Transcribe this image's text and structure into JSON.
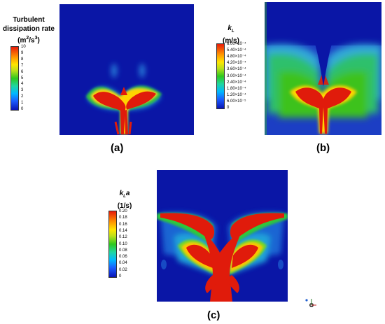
{
  "panel_a": {
    "title_line1": "Turbulent",
    "title_line2": "dissipation rate",
    "title_unit_base": "(m",
    "title_unit_exp1": "2",
    "title_unit_mid": "/s",
    "title_unit_exp2": "3",
    "title_unit_end": ")",
    "ticks": [
      "10",
      "9",
      "8",
      "7",
      "6",
      "5",
      "4",
      "3",
      "2",
      "1",
      "0"
    ],
    "caption": "(a)"
  },
  "panel_b": {
    "title_line1": "k",
    "title_sub": "L",
    "title_unit": "(m/s)",
    "ticks": [
      "6.00×10⁻⁴",
      "5.40×10⁻⁴",
      "4.80×10⁻⁴",
      "4.20×10⁻⁴",
      "3.60×10⁻⁴",
      "3.00×10⁻⁴",
      "2.40×10⁻⁴",
      "1.80×10⁻⁴",
      "1.20×10⁻⁴",
      "6.00×10⁻⁵",
      "0"
    ],
    "caption": "(b)"
  },
  "panel_c": {
    "title_line1": "k",
    "title_sub": "L",
    "title_suffix": "a",
    "title_unit": "(1/s)",
    "ticks": [
      "0.20",
      "0.18",
      "0.16",
      "0.14",
      "0.12",
      "0.10",
      "0.08",
      "0.06",
      "0.04",
      "0.02",
      "0"
    ],
    "caption": "(c)"
  },
  "colors": {
    "background_field": "#0a16a6",
    "hot": "#e01b0b"
  },
  "icons": {
    "axis_triad": "axis-triad-icon"
  }
}
